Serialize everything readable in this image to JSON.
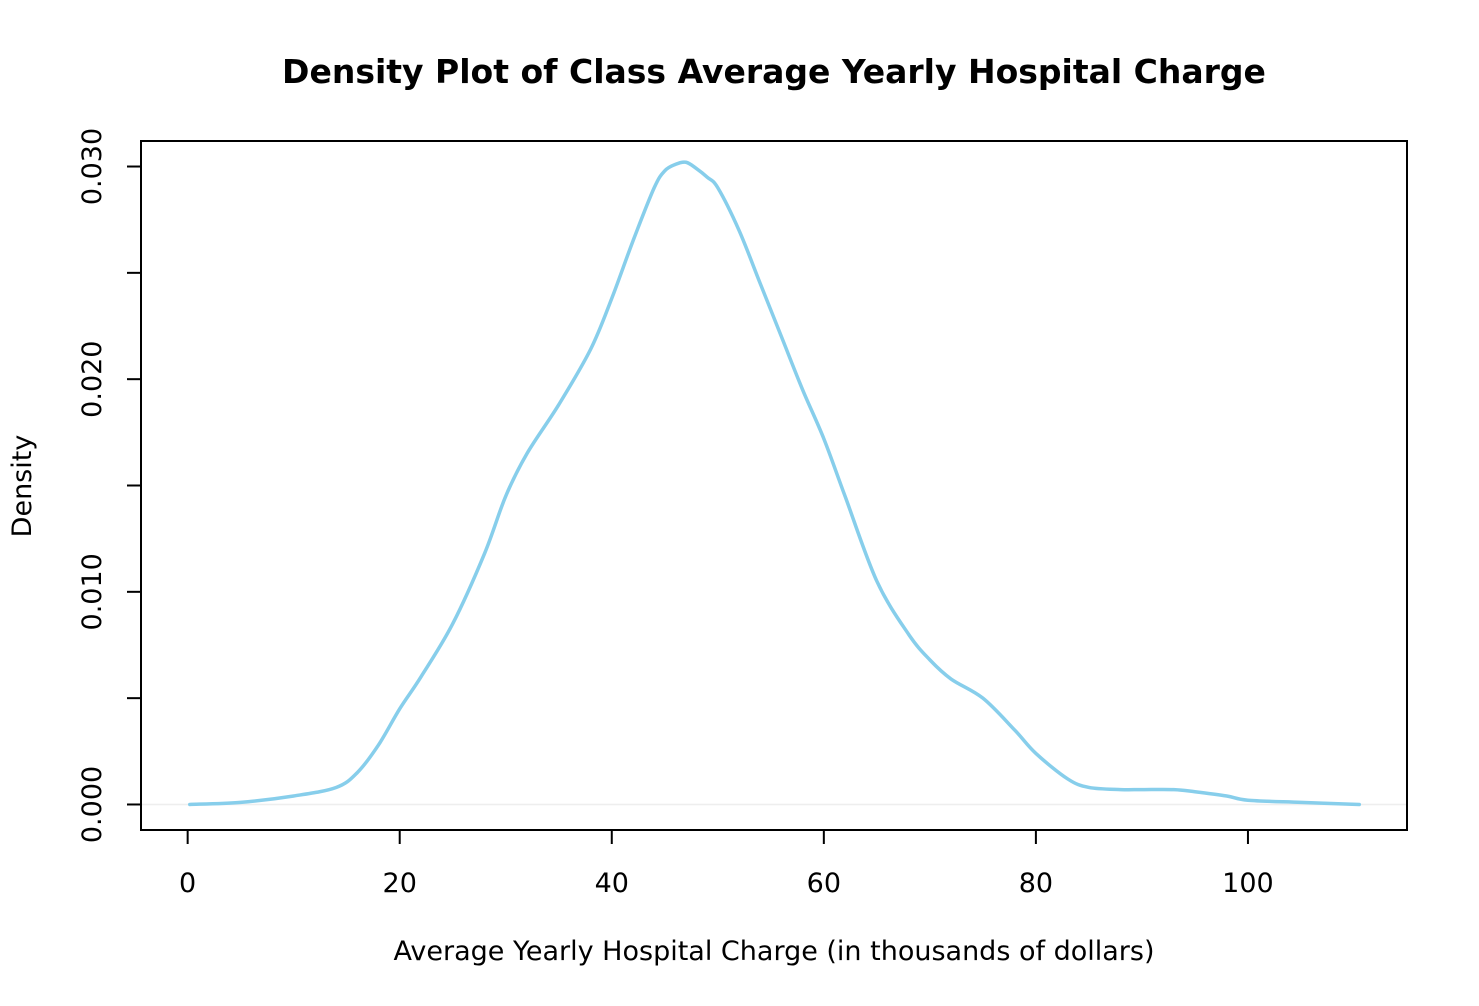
{
  "chart_data": {
    "type": "line",
    "title": "Density Plot of Class Average Yearly Hospital Charge",
    "xlabel": "Average Yearly Hospital Charge (in thousands of dollars)",
    "ylabel": "Density",
    "xlim": [
      -4.4,
      115
    ],
    "ylim": [
      -0.0012,
      0.0312
    ],
    "x_ticks": [
      0,
      20,
      40,
      60,
      80,
      100
    ],
    "x_tick_labels": [
      "0",
      "20",
      "40",
      "60",
      "80",
      "100"
    ],
    "y_ticks": [
      0.0,
      0.005,
      0.01,
      0.015,
      0.02,
      0.025,
      0.03
    ],
    "y_tick_labels": [
      "0.000",
      "",
      "0.010",
      "",
      "0.020",
      "",
      "0.030"
    ],
    "grid": false,
    "baseline_y": 0,
    "series": [
      {
        "color": "#87ceeb",
        "x": [
          0.2,
          5,
          10,
          14,
          16,
          18,
          20,
          22,
          25,
          28,
          30,
          32,
          35,
          38,
          40,
          42,
          44,
          45,
          46,
          47,
          48,
          49,
          50,
          52,
          54,
          56,
          58,
          60,
          62,
          65,
          68,
          70,
          72,
          75,
          78,
          80,
          83,
          85,
          88,
          90,
          93,
          95,
          98,
          100,
          105,
          110.5
        ],
        "y": [
          0.0,
          0.0001,
          0.0004,
          0.0008,
          0.0015,
          0.0028,
          0.0045,
          0.006,
          0.0085,
          0.0118,
          0.0145,
          0.0165,
          0.0188,
          0.0214,
          0.0238,
          0.0265,
          0.029,
          0.0298,
          0.0301,
          0.0302,
          0.0299,
          0.0295,
          0.029,
          0.027,
          0.0245,
          0.022,
          0.0195,
          0.0172,
          0.0145,
          0.0105,
          0.008,
          0.0068,
          0.0059,
          0.005,
          0.0035,
          0.0024,
          0.0012,
          0.0008,
          0.0007,
          0.0007,
          0.0007,
          0.0006,
          0.0004,
          0.0002,
          0.0001,
          0.0
        ]
      }
    ]
  }
}
